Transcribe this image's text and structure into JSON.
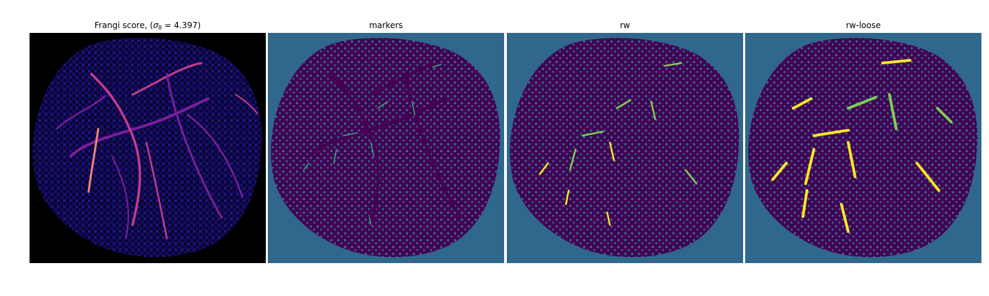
{
  "figure": {
    "panels": [
      {
        "id": "frangi",
        "title_main": "Frangi score, (",
        "title_sigma": "σ",
        "title_sub": "8",
        "title_tail": " = 4.397)",
        "background": "#000000",
        "tissue_color": "#1a0d6e",
        "colormap": "magma",
        "vessel_colors": [
          "#7a1f9c",
          "#c43c8c",
          "#f2827a"
        ]
      },
      {
        "id": "markers",
        "title": "markers",
        "background": "#30678d",
        "tissue_color": "#440154",
        "marker_color": "#35b779"
      },
      {
        "id": "rw",
        "title": "rw",
        "background": "#30678d",
        "tissue_color": "#440154",
        "segment_color": "#7ad151",
        "highlight_color": "#fde725"
      },
      {
        "id": "rw-loose",
        "title": "rw-loose",
        "background": "#30678d",
        "tissue_color": "#440154",
        "segment_color": "#7ad151",
        "highlight_color": "#fde725"
      }
    ]
  }
}
